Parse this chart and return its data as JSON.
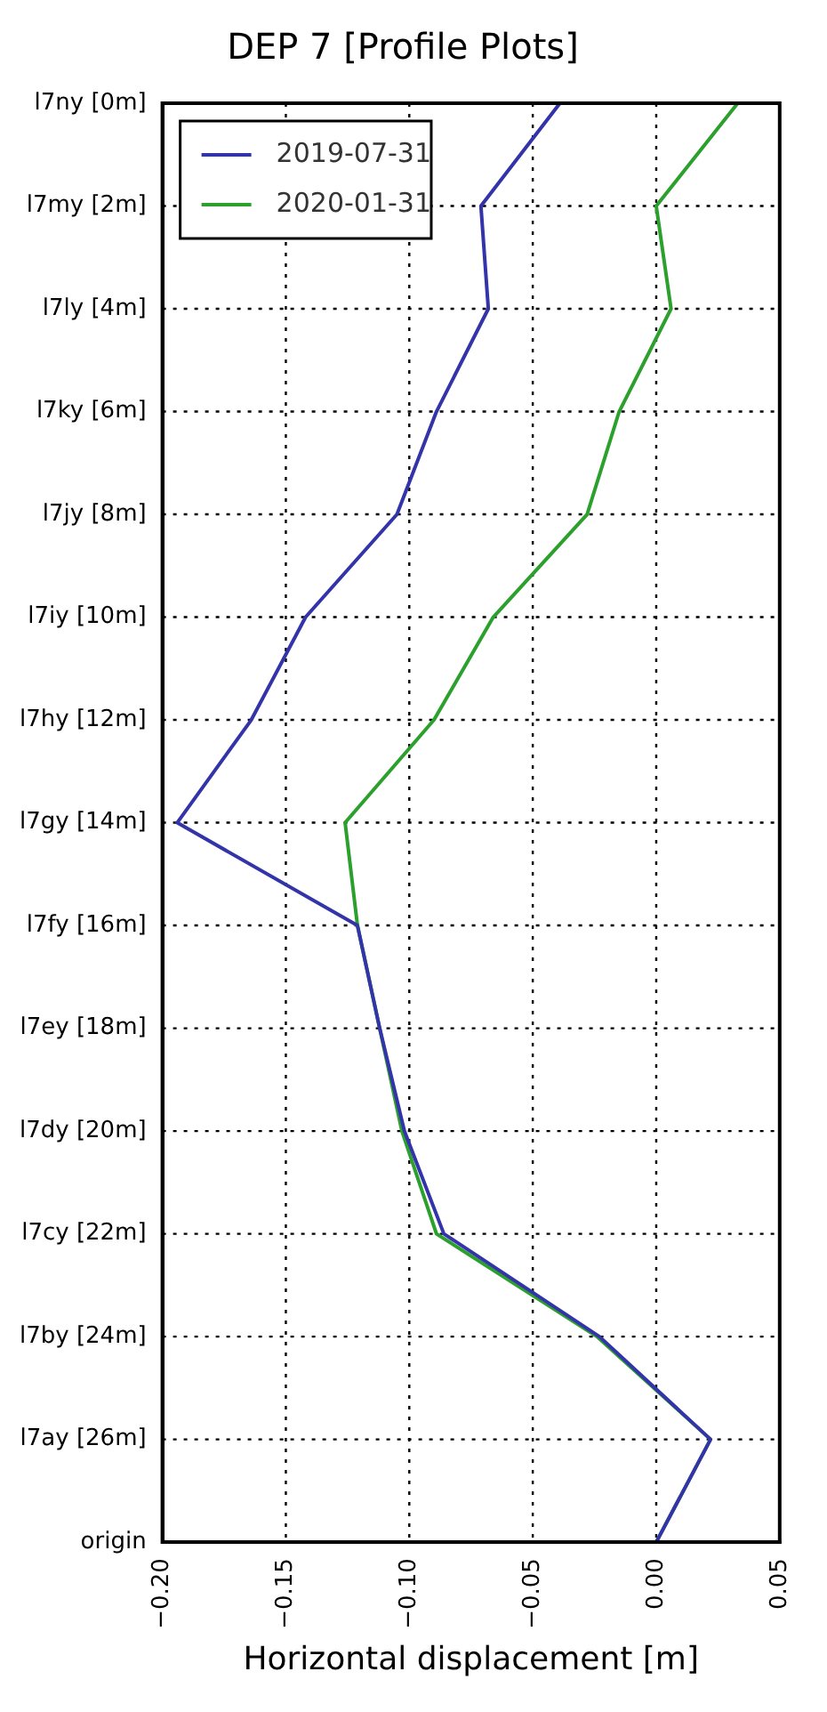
{
  "chart_data": {
    "type": "line",
    "title": "DEP 7 [Profile Plots]",
    "xlabel": "Horizontal displacement [m]",
    "orientation": "horizontal",
    "categories": [
      "l7ny [0m]",
      "l7my [2m]",
      "l7ly [4m]",
      "l7ky [6m]",
      "l7jy [8m]",
      "l7iy [10m]",
      "l7hy [12m]",
      "l7gy [14m]",
      "l7fy [16m]",
      "l7ey [18m]",
      "l7dy [20m]",
      "l7cy [22m]",
      "l7by [24m]",
      "l7ay [26m]",
      "origin"
    ],
    "series": [
      {
        "name": "2019-07-31",
        "color": "#3333aa",
        "values": [
          -0.039,
          -0.071,
          -0.068,
          -0.089,
          -0.105,
          -0.142,
          -0.164,
          -0.194,
          -0.121,
          -0.112,
          -0.102,
          -0.086,
          -0.023,
          0.022,
          0.0
        ]
      },
      {
        "name": "2020-01-31",
        "color": "#2ca02c",
        "values": [
          0.033,
          0.0,
          0.006,
          -0.015,
          -0.028,
          -0.066,
          -0.09,
          -0.126,
          -0.121,
          -0.112,
          -0.103,
          -0.089,
          -0.024,
          0.022,
          0.0
        ]
      }
    ],
    "xlim": [
      -0.2,
      0.05
    ],
    "xticks": [
      {
        "value": -0.2,
        "label": "−0.20"
      },
      {
        "value": -0.15,
        "label": "−0.15"
      },
      {
        "value": -0.1,
        "label": "−0.10"
      },
      {
        "value": -0.05,
        "label": "−0.05"
      },
      {
        "value": 0.0,
        "label": "0.00"
      },
      {
        "value": 0.05,
        "label": "0.05"
      }
    ],
    "grid": true,
    "legend": "top left",
    "line_style": "solid",
    "marker": "none"
  }
}
